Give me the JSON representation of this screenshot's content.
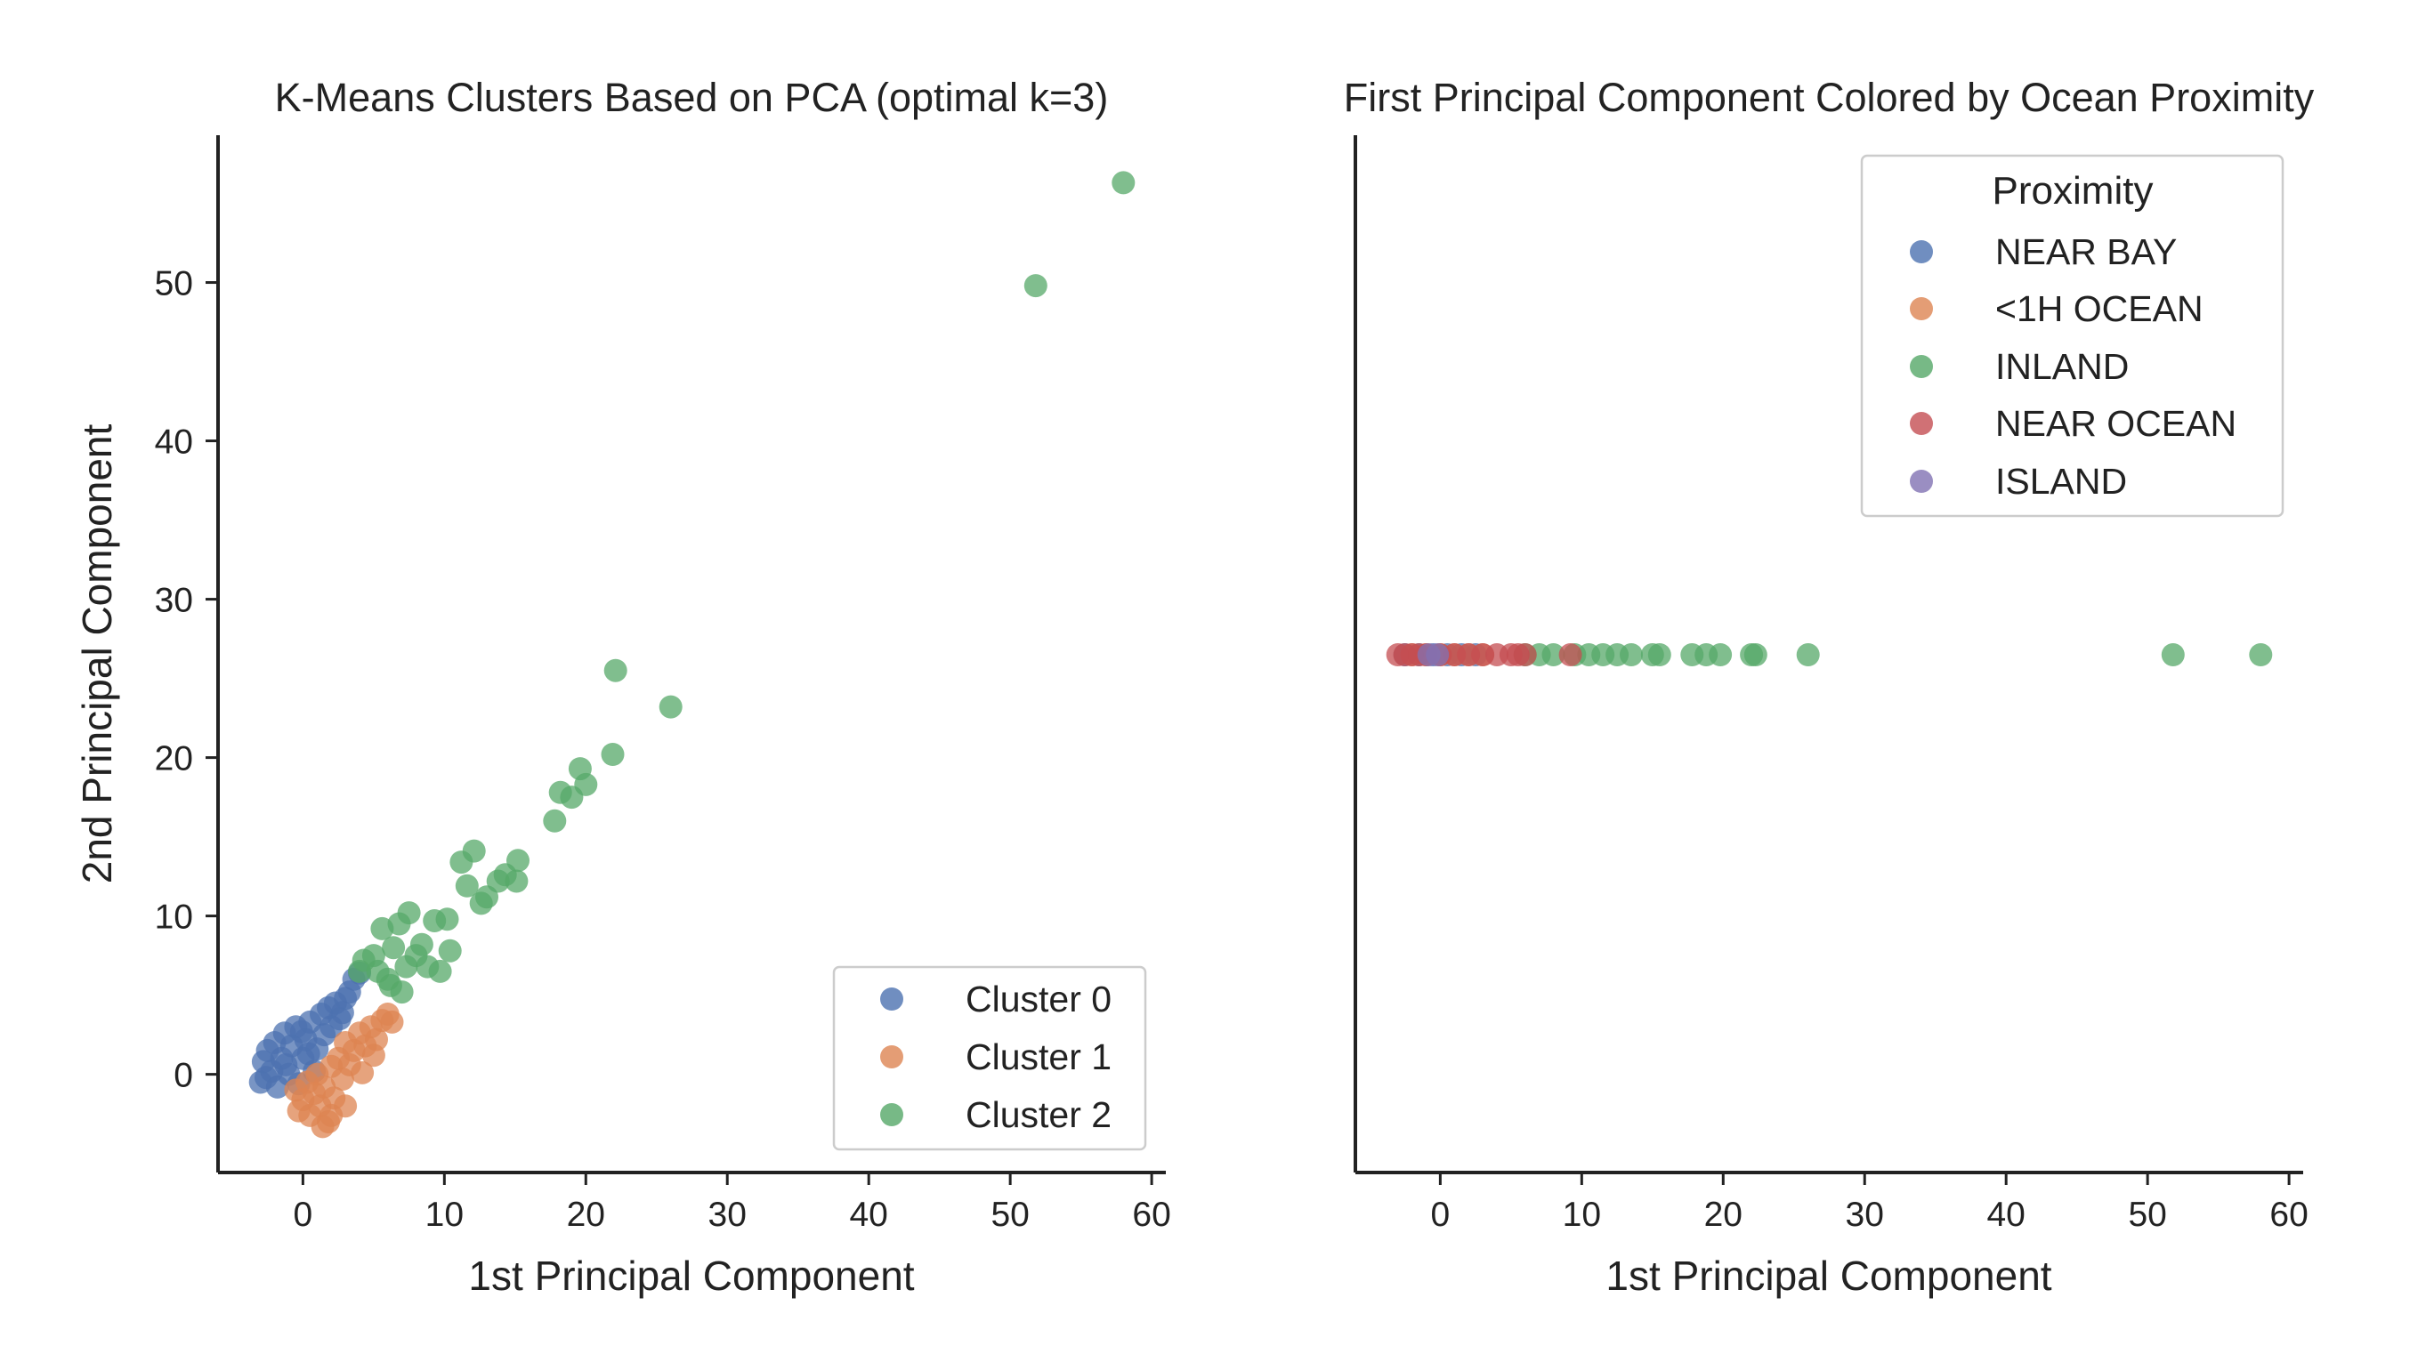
{
  "colors": {
    "blue": "#4c72b0",
    "orange": "#dd8452",
    "green": "#55a868",
    "red": "#c44e52",
    "purple": "#8172b3",
    "axis": "#222222",
    "legend_border": "#cccccc"
  },
  "chart_data": [
    {
      "type": "scatter",
      "title": "K-Means Clusters Based on PCA (optimal k=3)",
      "xlabel": "1st Principal Component",
      "ylabel": "2nd Principal Component",
      "xlim": [
        -6,
        61
      ],
      "ylim": [
        -6.2,
        59.3
      ],
      "xticks": [
        0,
        10,
        20,
        30,
        40,
        50,
        60
      ],
      "yticks": [
        0,
        10,
        20,
        30,
        40,
        50
      ],
      "grid": false,
      "legend_position": "lower-right",
      "series": [
        {
          "name": "Cluster 0",
          "color": "blue",
          "points": [
            [
              -3,
              -0.5
            ],
            [
              -2.8,
              0.8
            ],
            [
              -2.5,
              1.5
            ],
            [
              -2.2,
              0.2
            ],
            [
              -2,
              2
            ],
            [
              -1.8,
              -0.8
            ],
            [
              -1.5,
              1
            ],
            [
              -1.3,
              2.6
            ],
            [
              -1,
              0
            ],
            [
              -0.8,
              1.8
            ],
            [
              -0.5,
              3
            ],
            [
              -0.3,
              -0.6
            ],
            [
              0,
              1
            ],
            [
              0.2,
              2.2
            ],
            [
              0.5,
              3.3
            ],
            [
              0.8,
              0.2
            ],
            [
              1,
              1.6
            ],
            [
              1.3,
              3.8
            ],
            [
              1.5,
              2.5
            ],
            [
              1.8,
              4.2
            ],
            [
              2,
              3
            ],
            [
              2.3,
              4.5
            ],
            [
              2.6,
              3.5
            ],
            [
              3,
              4.8
            ],
            [
              3.3,
              5.2
            ],
            [
              3.6,
              6
            ],
            [
              4,
              6.4
            ],
            [
              -2.6,
              -0.2
            ],
            [
              -1.2,
              0.6
            ],
            [
              0.4,
              1.3
            ],
            [
              2.8,
              3.9
            ],
            [
              -0.1,
              2.7
            ]
          ]
        },
        {
          "name": "Cluster 1",
          "color": "orange",
          "points": [
            [
              -0.5,
              -1
            ],
            [
              -0.3,
              -2.3
            ],
            [
              0,
              -1.6
            ],
            [
              0.3,
              -0.5
            ],
            [
              0.5,
              -2.6
            ],
            [
              0.8,
              -1.2
            ],
            [
              1,
              0
            ],
            [
              1.2,
              -2
            ],
            [
              1.5,
              -0.8
            ],
            [
              1.8,
              -3
            ],
            [
              2,
              0.5
            ],
            [
              2.2,
              -1.5
            ],
            [
              2.5,
              1
            ],
            [
              2.8,
              -0.3
            ],
            [
              3,
              2
            ],
            [
              3.3,
              0.6
            ],
            [
              3.6,
              1.5
            ],
            [
              4,
              2.6
            ],
            [
              4.4,
              1.8
            ],
            [
              4.8,
              3
            ],
            [
              5.2,
              2.2
            ],
            [
              5.6,
              3.4
            ],
            [
              6,
              3.8
            ],
            [
              6.3,
              3.3
            ],
            [
              5,
              1.2
            ],
            [
              3,
              -2
            ],
            [
              2,
              -2.6
            ],
            [
              1.4,
              -3.3
            ],
            [
              4.2,
              0.1
            ]
          ]
        },
        {
          "name": "Cluster 2",
          "color": "green",
          "points": [
            [
              4,
              6.5
            ],
            [
              4.3,
              7.2
            ],
            [
              5,
              7.5
            ],
            [
              5.6,
              9.2
            ],
            [
              6,
              6
            ],
            [
              6.4,
              8
            ],
            [
              6.8,
              9.5
            ],
            [
              7,
              5.2
            ],
            [
              7.5,
              10.2
            ],
            [
              8,
              7.5
            ],
            [
              8.4,
              8.2
            ],
            [
              8.8,
              6.8
            ],
            [
              9.3,
              9.7
            ],
            [
              9.7,
              6.5
            ],
            [
              10.4,
              7.8
            ],
            [
              11.2,
              13.4
            ],
            [
              11.6,
              11.9
            ],
            [
              12.1,
              14.1
            ],
            [
              12.6,
              10.8
            ],
            [
              13,
              11.2
            ],
            [
              13.8,
              12.2
            ],
            [
              14.3,
              12.6
            ],
            [
              15.2,
              13.5
            ],
            [
              15.1,
              12.2
            ],
            [
              17.8,
              16
            ],
            [
              18.2,
              17.8
            ],
            [
              19,
              17.5
            ],
            [
              19.6,
              19.3
            ],
            [
              20,
              18.3
            ],
            [
              21.9,
              20.2
            ],
            [
              22.1,
              25.5
            ],
            [
              26,
              23.2
            ],
            [
              51.8,
              49.8
            ],
            [
              58,
              56.3
            ],
            [
              6.2,
              5.6
            ],
            [
              7.3,
              6.8
            ],
            [
              5.3,
              6.5
            ],
            [
              10.2,
              9.8
            ]
          ]
        }
      ]
    },
    {
      "type": "scatter",
      "title": "First Principal Component Colored by Ocean Proximity",
      "xlabel": "1st Principal Component",
      "ylabel": "",
      "xlim": [
        -6,
        61
      ],
      "xticks": [
        0,
        10,
        20,
        30,
        40,
        50,
        60
      ],
      "grid": false,
      "legend_position": "upper-right",
      "legend_title": "Proximity",
      "series": [
        {
          "name": "NEAR BAY",
          "color": "blue",
          "x": [
            -2.5,
            -1.5,
            -0.5,
            0.5,
            1.5,
            2.5
          ]
        },
        {
          "name": "<1H OCEAN",
          "color": "orange",
          "x": [
            -2,
            -1,
            0,
            1,
            2,
            3
          ]
        },
        {
          "name": "INLAND",
          "color": "green",
          "x": [
            6,
            7,
            8,
            9.5,
            10.5,
            11.5,
            12.5,
            13.5,
            15,
            15.5,
            17.8,
            18.8,
            19.8,
            22,
            22.3,
            26,
            51.8,
            58
          ]
        },
        {
          "name": "NEAR OCEAN",
          "color": "red",
          "x": [
            -3,
            -2.5,
            -2,
            -1.5,
            -1,
            0,
            1,
            2,
            3,
            4,
            5,
            5.5,
            6,
            9.2
          ]
        },
        {
          "name": "ISLAND",
          "color": "purple",
          "x": [
            -0.8,
            -0.2
          ]
        }
      ]
    }
  ]
}
